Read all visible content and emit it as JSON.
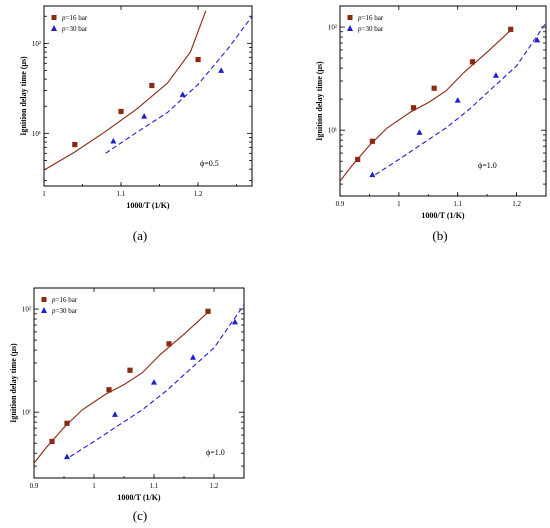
{
  "chart_data": [
    {
      "type": "scatter",
      "panel_label": "(a)",
      "xlabel": "1000/T (1/K)",
      "ylabel": "Ignition delay time (μs)",
      "xlim": [
        1.0,
        1.27
      ],
      "x_ticks": [
        "1",
        "1.1",
        "1.2"
      ],
      "y_ticks": [
        "10¹",
        "10²"
      ],
      "yscale": "log",
      "annotation": "ϕ=0.5",
      "legend_position": "top-left",
      "series": [
        {
          "name": "p=16 bar",
          "marker": "square",
          "color": "#8b2a12",
          "line": "solid",
          "points": [
            [
              1.04,
              7.5
            ],
            [
              1.1,
              17.5
            ],
            [
              1.14,
              34
            ],
            [
              1.2,
              66
            ]
          ],
          "curve": [
            [
              1.0,
              3.9
            ],
            [
              1.04,
              6.2
            ],
            [
              1.08,
              10.5
            ],
            [
              1.12,
              18.5
            ],
            [
              1.16,
              36
            ],
            [
              1.19,
              80
            ],
            [
              1.21,
              230
            ]
          ]
        },
        {
          "name": "p=30 bar",
          "marker": "triangle",
          "color": "#1f1fd0",
          "line": "dashed",
          "points": [
            [
              1.09,
              8.2
            ],
            [
              1.13,
              15.5
            ],
            [
              1.18,
              27
            ],
            [
              1.23,
              50
            ]
          ],
          "curve": [
            [
              1.08,
              6.0
            ],
            [
              1.12,
              10.2
            ],
            [
              1.16,
              17
            ],
            [
              1.2,
              35
            ],
            [
              1.24,
              90
            ],
            [
              1.27,
              200
            ]
          ]
        }
      ]
    },
    {
      "type": "scatter",
      "panel_label": "(b)",
      "xlabel": "1000/T (1/K)",
      "ylabel": "Ignition delay time (μs)",
      "xlim": [
        0.9,
        1.25
      ],
      "x_ticks": [
        "0.9",
        "1",
        "1.1",
        "1.2"
      ],
      "y_ticks": [
        "10¹",
        "10²"
      ],
      "yscale": "log",
      "annotation": "ϕ=1.0",
      "legend_position": "top-left",
      "series": [
        {
          "name": "p=16 bar",
          "marker": "square",
          "color": "#8b2a12",
          "line": "solid",
          "points": [
            [
              0.93,
              5.2
            ],
            [
              0.955,
              7.8
            ],
            [
              1.025,
              16.5
            ],
            [
              1.06,
              25.5
            ],
            [
              1.125,
              46
            ],
            [
              1.19,
              95
            ]
          ],
          "curve": [
            [
              0.9,
              3.2
            ],
            [
              0.92,
              4.5
            ],
            [
              0.95,
              7.1
            ],
            [
              0.98,
              10.5
            ],
            [
              1.02,
              15.0
            ],
            [
              1.05,
              18.5
            ],
            [
              1.08,
              24
            ],
            [
              1.11,
              36
            ],
            [
              1.15,
              57
            ],
            [
              1.19,
              93
            ]
          ]
        },
        {
          "name": "p=30 bar",
          "marker": "triangle",
          "color": "#1f1fd0",
          "line": "dashed",
          "points": [
            [
              0.955,
              3.7
            ],
            [
              1.035,
              9.5
            ],
            [
              1.1,
              19.5
            ],
            [
              1.165,
              34
            ],
            [
              1.235,
              75
            ]
          ],
          "curve": [
            [
              0.96,
              3.7
            ],
            [
              1.0,
              5.2
            ],
            [
              1.04,
              7.4
            ],
            [
              1.08,
              10.5
            ],
            [
              1.12,
              16
            ],
            [
              1.16,
              26
            ],
            [
              1.2,
              42
            ],
            [
              1.25,
              110
            ]
          ]
        }
      ]
    },
    {
      "type": "scatter",
      "panel_label": "(c)",
      "xlabel": "1000/T (1/K)",
      "ylabel": "Ignition delay time (μs)",
      "xlim": [
        0.9,
        1.25
      ],
      "x_ticks": [
        "0.9",
        "1",
        "1.1",
        "1.2"
      ],
      "y_ticks": [
        "10¹",
        "10²"
      ],
      "yscale": "log",
      "annotation": "ϕ=1.0",
      "legend_position": "top-left",
      "series": [
        {
          "name": "p=16 bar",
          "marker": "square",
          "color": "#8b2a12",
          "line": "solid",
          "points": [
            [
              0.93,
              5.2
            ],
            [
              0.955,
              7.8
            ],
            [
              1.025,
              16.5
            ],
            [
              1.06,
              25.5
            ],
            [
              1.125,
              46
            ],
            [
              1.19,
              95
            ]
          ],
          "curve": [
            [
              0.9,
              3.2
            ],
            [
              0.92,
              4.5
            ],
            [
              0.95,
              7.1
            ],
            [
              0.98,
              10.5
            ],
            [
              1.02,
              15.0
            ],
            [
              1.05,
              18.5
            ],
            [
              1.08,
              24
            ],
            [
              1.11,
              36
            ],
            [
              1.15,
              57
            ],
            [
              1.19,
              93
            ]
          ]
        },
        {
          "name": "p=30 bar",
          "marker": "triangle",
          "color": "#1f1fd0",
          "line": "dashed",
          "points": [
            [
              0.955,
              3.7
            ],
            [
              1.035,
              9.5
            ],
            [
              1.1,
              19.5
            ],
            [
              1.165,
              34
            ],
            [
              1.235,
              75
            ]
          ],
          "curve": [
            [
              0.96,
              3.7
            ],
            [
              1.0,
              5.2
            ],
            [
              1.04,
              7.4
            ],
            [
              1.08,
              10.5
            ],
            [
              1.12,
              16
            ],
            [
              1.16,
              26
            ],
            [
              1.2,
              42
            ],
            [
              1.25,
              110
            ]
          ]
        }
      ]
    }
  ]
}
